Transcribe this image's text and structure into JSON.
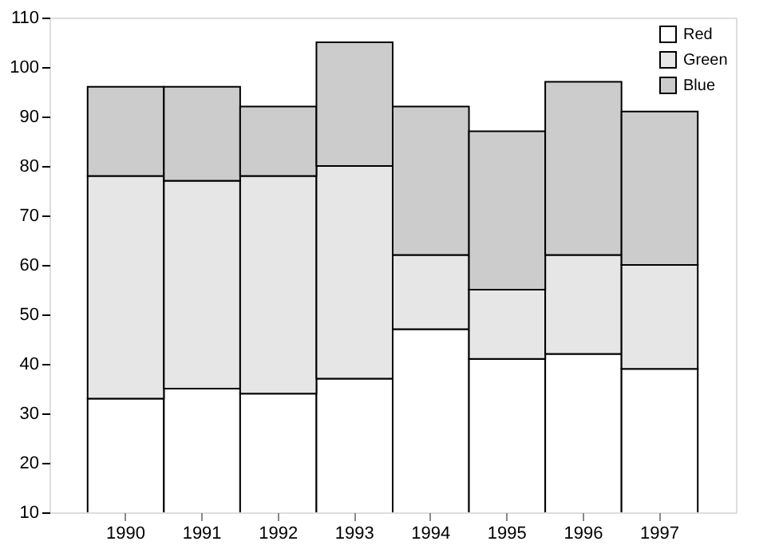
{
  "chart_data": {
    "type": "bar",
    "stacked": true,
    "categories": [
      "1990",
      "1991",
      "1992",
      "1993",
      "1994",
      "1995",
      "1996",
      "1997"
    ],
    "series": [
      {
        "name": "Red",
        "color": "#ffffff",
        "values": [
          33,
          35,
          34,
          37,
          47,
          41,
          42,
          39
        ]
      },
      {
        "name": "Green",
        "color": "#e6e6e6",
        "values": [
          45,
          42,
          44,
          43,
          15,
          14,
          20,
          21
        ]
      },
      {
        "name": "Blue",
        "color": "#cccccc",
        "values": [
          18,
          19,
          14,
          25,
          30,
          32,
          35,
          31
        ]
      }
    ],
    "ylim": [
      10,
      110
    ],
    "yticks": [
      10,
      20,
      30,
      40,
      50,
      60,
      70,
      80,
      90,
      100,
      110
    ],
    "grid": false,
    "legend": "top right"
  }
}
